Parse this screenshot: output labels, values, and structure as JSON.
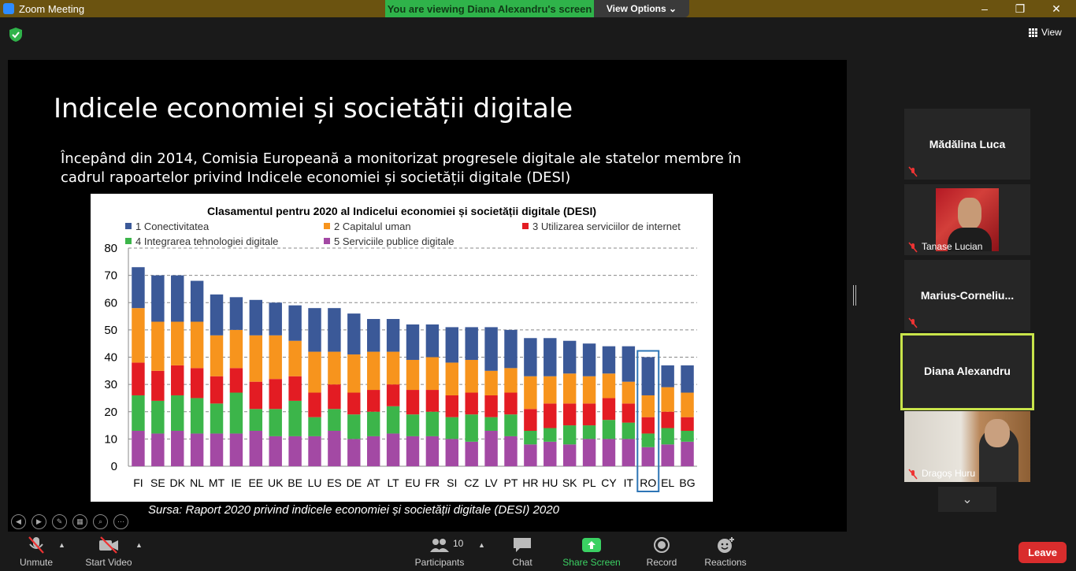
{
  "window": {
    "title": "Zoom Meeting",
    "viewing_banner": "You are viewing Diana Alexandru's screen",
    "view_options": "View Options",
    "view_label": "View"
  },
  "slide": {
    "title": "Indicele economiei și societății digitale",
    "body": "Începând din 2014, Comisia Europeană a monitorizat progresele digitale ale statelor membre în cadrul rapoartelor privind Indicele economiei și societății digitale (DESI)",
    "source": "Sursa: Raport 2020 privind indicele economiei și societății digitale (DESI) 2020"
  },
  "chart_data": {
    "type": "bar",
    "stacked": true,
    "title": "Clasamentul pentru 2020 al Indicelui economiei și societății digitale (DESI)",
    "categories": [
      "FI",
      "SE",
      "DK",
      "NL",
      "MT",
      "IE",
      "EE",
      "UK",
      "BE",
      "LU",
      "ES",
      "DE",
      "AT",
      "LT",
      "EU",
      "FR",
      "SI",
      "CZ",
      "LV",
      "PT",
      "HR",
      "HU",
      "SK",
      "PL",
      "CY",
      "IT",
      "RO",
      "EL",
      "BG"
    ],
    "highlight": "RO",
    "ylim": [
      0,
      80
    ],
    "yticks": [
      "0",
      "10",
      "20",
      "30",
      "40",
      "50",
      "60",
      "70",
      "80"
    ],
    "grid": "horizontal-dashed",
    "legend_position": "top",
    "series": [
      {
        "name": "5 Serviciile publice digitale",
        "color": "#a349a4",
        "values": [
          13,
          12,
          13,
          12,
          12,
          12,
          13,
          11,
          11,
          11,
          13,
          10,
          11,
          12,
          11,
          11,
          10,
          9,
          13,
          11,
          8,
          9,
          8,
          10,
          10,
          10,
          7,
          8,
          9
        ]
      },
      {
        "name": "4 Integrarea tehnologiei digitale",
        "color": "#3cb54a",
        "values": [
          13,
          12,
          13,
          13,
          11,
          15,
          8,
          10,
          13,
          7,
          8,
          9,
          9,
          10,
          8,
          9,
          8,
          10,
          5,
          8,
          5,
          5,
          7,
          5,
          7,
          6,
          5,
          6,
          4
        ]
      },
      {
        "name": "3 Utilizarea serviciilor de internet",
        "color": "#e31c23",
        "values": [
          12,
          11,
          11,
          11,
          10,
          9,
          10,
          11,
          9,
          9,
          9,
          8,
          8,
          8,
          9,
          8,
          8,
          8,
          8,
          8,
          8,
          9,
          8,
          8,
          8,
          7,
          6,
          6,
          5
        ]
      },
      {
        "name": "2 Capitalul uman",
        "color": "#f7941d",
        "values": [
          20,
          18,
          16,
          17,
          15,
          14,
          17,
          16,
          13,
          15,
          12,
          14,
          14,
          12,
          11,
          12,
          12,
          12,
          9,
          9,
          12,
          10,
          11,
          10,
          9,
          8,
          8,
          9,
          9
        ]
      },
      {
        "name": "1 Conectivitatea",
        "color": "#3b5998",
        "values": [
          15,
          17,
          17,
          15,
          15,
          12,
          13,
          12,
          13,
          16,
          16,
          15,
          12,
          12,
          13,
          12,
          13,
          12,
          16,
          14,
          14,
          14,
          12,
          12,
          10,
          13,
          14,
          8,
          10
        ]
      }
    ],
    "legend_order": [
      "1 Conectivitatea",
      "2 Capitalul uman",
      "3 Utilizarea serviciilor de internet",
      "4 Integrarea tehnologiei digitale",
      "5 Serviciile publice digitale"
    ]
  },
  "participants": [
    {
      "name": "Mădălina Luca",
      "muted": true,
      "video": false
    },
    {
      "name": "Tanase Lucian",
      "muted": true,
      "video": true
    },
    {
      "name": "Marius-Corneliu...",
      "muted": true,
      "video": false
    },
    {
      "name": "Diana Alexandru",
      "muted": false,
      "video": false,
      "active": true
    },
    {
      "name": "Dragoș Huru",
      "muted": true,
      "video": true
    }
  ],
  "toolbar": {
    "unmute": "Unmute",
    "start_video": "Start Video",
    "participants": "Participants",
    "participants_count": "10",
    "chat": "Chat",
    "share_screen": "Share Screen",
    "record": "Record",
    "reactions": "Reactions",
    "leave": "Leave"
  },
  "colors": {
    "banner_green": "#2fb34a",
    "active_speaker": "#c8e44a",
    "leave_red": "#d92d2d",
    "titlebar": "#6b5310"
  }
}
